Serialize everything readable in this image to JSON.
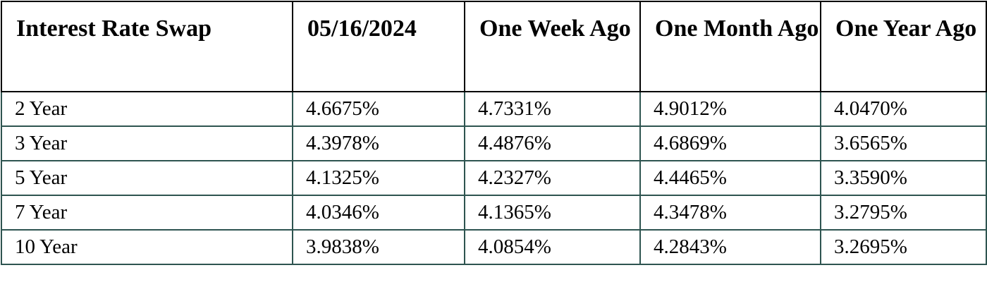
{
  "table": {
    "headers": [
      "Interest Rate Swap",
      "05/16/2024",
      "One Week Ago",
      "One Month Ago",
      "One Year Ago"
    ],
    "rows": [
      [
        "2 Year",
        "4.6675%",
        "4.7331%",
        "4.9012%",
        "4.0470%"
      ],
      [
        "3 Year",
        "4.3978%",
        "4.4876%",
        "4.6869%",
        "3.6565%"
      ],
      [
        "5 Year",
        "4.1325%",
        "4.2327%",
        "4.4465%",
        "3.3590%"
      ],
      [
        "7 Year",
        "4.0346%",
        "4.1365%",
        "4.3478%",
        "3.2795%"
      ],
      [
        "10 Year",
        "3.9838%",
        "4.0854%",
        "4.2843%",
        "3.2695%"
      ]
    ]
  },
  "colors": {
    "header_border": "#000000",
    "body_border": "#2e5450"
  }
}
